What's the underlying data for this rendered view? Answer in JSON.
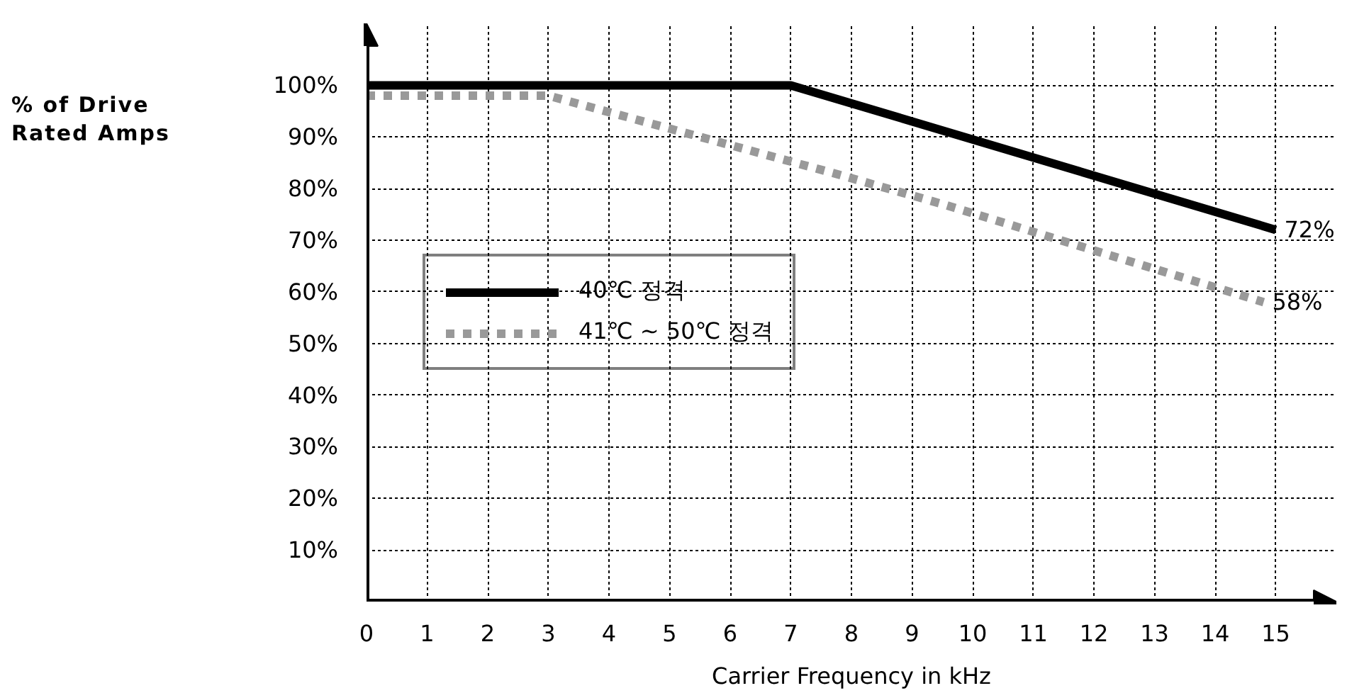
{
  "chart_data": {
    "type": "line",
    "xlabel": "Carrier Frequency in kHz",
    "ylabel": "% of Drive Rated Amps",
    "xlim": [
      0,
      16
    ],
    "ylim": [
      0,
      112
    ],
    "xticks": [
      0,
      1,
      2,
      3,
      4,
      5,
      6,
      7,
      8,
      9,
      10,
      11,
      12,
      13,
      14,
      15
    ],
    "yticks": [
      {
        "value": 10,
        "label": "10%"
      },
      {
        "value": 20,
        "label": "20%"
      },
      {
        "value": 30,
        "label": "30%"
      },
      {
        "value": 40,
        "label": "40%"
      },
      {
        "value": 50,
        "label": "50%"
      },
      {
        "value": 60,
        "label": "60%"
      },
      {
        "value": 70,
        "label": "70%"
      },
      {
        "value": 80,
        "label": "80%"
      },
      {
        "value": 90,
        "label": "90%"
      },
      {
        "value": 100,
        "label": "100%"
      }
    ],
    "grid": true,
    "legend": "left",
    "series": [
      {
        "name": "40℃ 정격",
        "color": "#000000",
        "line_style": "solid",
        "x": [
          0,
          7,
          15
        ],
        "values": [
          100,
          100,
          72
        ]
      },
      {
        "name": "41℃ ~ 50℃ 정격",
        "color": "#999999",
        "line_style": "dotted",
        "x": [
          0,
          3,
          7.7,
          9.5,
          14.8
        ],
        "values": [
          98,
          98,
          83,
          77,
          58
        ]
      }
    ],
    "annotations": [
      {
        "text": "72%",
        "x": 15,
        "y": 72
      },
      {
        "text": "58%",
        "x": 14.8,
        "y": 58
      }
    ]
  }
}
